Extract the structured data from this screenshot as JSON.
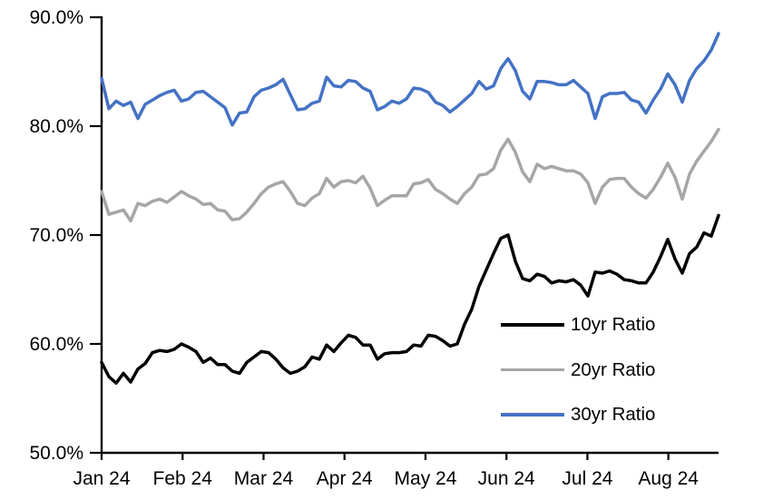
{
  "chart_data": {
    "type": "line",
    "title": "",
    "xlabel": "",
    "ylabel": "",
    "unit": "percent",
    "grid": "off",
    "ylim": [
      50,
      90
    ],
    "y_tick_labels": [
      "50.0%",
      "60.0%",
      "70.0%",
      "80.0%",
      "90.0%"
    ],
    "y_tick_values": [
      50,
      60,
      70,
      80,
      90
    ],
    "x_tick_labels": [
      "Jan 24",
      "Feb 24",
      "Mar 24",
      "Apr 24",
      "May 24",
      "Jun 24",
      "Jul 24",
      "Aug 24"
    ],
    "x_tick_month_positions": [
      0,
      1,
      2,
      3,
      4,
      5,
      6,
      7
    ],
    "x_total_span_months": 7.62,
    "legend_position": "inside-lower-right",
    "axis_color": "#000000",
    "series": [
      {
        "name": "10yr Ratio",
        "color": "#000000",
        "values": [
          58.3,
          57.0,
          56.4,
          57.3,
          56.5,
          57.7,
          58.2,
          59.2,
          59.4,
          59.3,
          59.5,
          60.0,
          59.7,
          59.3,
          58.3,
          58.7,
          58.1,
          58.1,
          57.5,
          57.3,
          58.3,
          58.8,
          59.3,
          59.2,
          58.6,
          57.8,
          57.3,
          57.5,
          57.9,
          58.8,
          58.6,
          59.9,
          59.3,
          60.1,
          60.8,
          60.6,
          59.9,
          59.9,
          58.6,
          59.1,
          59.2,
          59.2,
          59.3,
          59.9,
          59.8,
          60.8,
          60.7,
          60.3,
          59.8,
          60.0,
          61.8,
          63.2,
          65.3,
          66.8,
          68.3,
          69.7,
          70.0,
          67.6,
          66.0,
          65.8,
          66.4,
          66.2,
          65.6,
          65.8,
          65.7,
          65.9,
          65.4,
          64.4,
          66.6,
          66.5,
          66.7,
          66.4,
          65.9,
          65.8,
          65.6,
          65.6,
          66.6,
          68.0,
          69.6,
          67.8,
          66.5,
          68.3,
          68.9,
          70.2,
          69.9,
          71.8
        ]
      },
      {
        "name": "20yr Ratio",
        "color": "#a6a6a6",
        "values": [
          74.0,
          71.9,
          72.1,
          72.3,
          71.3,
          72.9,
          72.7,
          73.1,
          73.3,
          73.0,
          73.5,
          74.0,
          73.6,
          73.3,
          72.8,
          72.9,
          72.3,
          72.2,
          71.4,
          71.5,
          72.1,
          72.9,
          73.8,
          74.4,
          74.7,
          74.9,
          74.0,
          72.9,
          72.7,
          73.4,
          73.8,
          75.2,
          74.4,
          74.9,
          75.0,
          74.8,
          75.4,
          74.3,
          72.7,
          73.2,
          73.6,
          73.6,
          73.6,
          74.7,
          74.8,
          75.1,
          74.2,
          73.8,
          73.3,
          72.9,
          73.8,
          74.4,
          75.5,
          75.6,
          76.1,
          77.8,
          78.8,
          77.6,
          75.8,
          74.9,
          76.5,
          76.1,
          76.3,
          76.1,
          75.9,
          75.9,
          75.6,
          74.8,
          72.9,
          74.4,
          75.1,
          75.2,
          75.2,
          74.4,
          73.8,
          73.4,
          74.2,
          75.3,
          76.6,
          75.3,
          73.3,
          75.6,
          76.8,
          77.7,
          78.6,
          79.7
        ]
      },
      {
        "name": "30yr Ratio",
        "color": "#4472c4",
        "values": [
          84.4,
          81.6,
          82.3,
          81.9,
          82.2,
          80.7,
          82.0,
          82.4,
          82.8,
          83.1,
          83.3,
          82.3,
          82.5,
          83.1,
          83.2,
          82.7,
          82.2,
          81.7,
          80.1,
          81.2,
          81.3,
          82.7,
          83.3,
          83.5,
          83.8,
          84.3,
          82.9,
          81.5,
          81.6,
          82.1,
          82.3,
          84.5,
          83.7,
          83.6,
          84.2,
          84.1,
          83.5,
          83.2,
          81.5,
          81.8,
          82.3,
          82.1,
          82.5,
          83.5,
          83.4,
          83.1,
          82.2,
          81.9,
          81.3,
          81.8,
          82.4,
          83.0,
          84.1,
          83.4,
          83.7,
          85.3,
          86.2,
          85.1,
          83.2,
          82.5,
          84.1,
          84.1,
          84.0,
          83.8,
          83.8,
          84.2,
          83.6,
          83.0,
          80.7,
          82.7,
          83.0,
          83.0,
          83.1,
          82.4,
          82.2,
          81.2,
          82.4,
          83.4,
          84.8,
          83.8,
          82.2,
          84.2,
          85.3,
          86.0,
          87.0,
          88.5
        ]
      }
    ]
  }
}
